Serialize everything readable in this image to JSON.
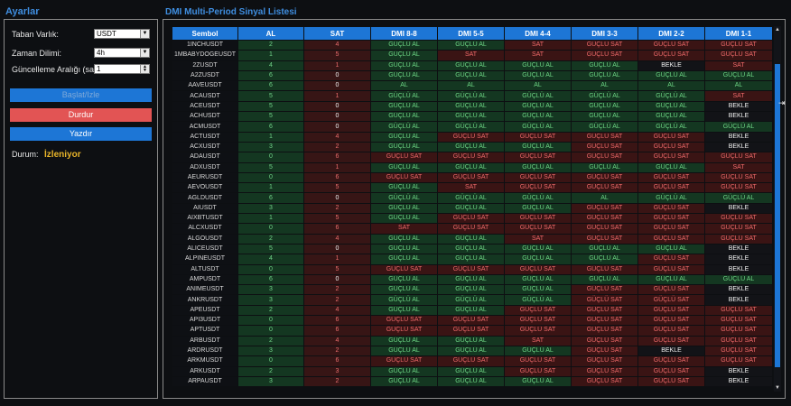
{
  "settings": {
    "title": "Ayarlar",
    "base_asset_label": "Taban Varlık:",
    "base_asset_value": "USDT",
    "timeframe_label": "Zaman Dilimi:",
    "timeframe_value": "4h",
    "interval_label": "Güncelleme Aralığı (saat):",
    "interval_value": "1",
    "start_button": "Başlat/Izle",
    "stop_button": "Durdur",
    "print_button": "Yazdır",
    "status_label": "Durum:",
    "status_value": "İzleniyor"
  },
  "signal_list": {
    "title": "DMI Multi-Period Sinyal Listesi",
    "columns": [
      "Sembol",
      "AL",
      "SAT",
      "DMI 8-8",
      "DMI 5-5",
      "DMI 4-4",
      "DMI 3-3",
      "DMI 2-2",
      "DMI 1-1"
    ],
    "rows": [
      [
        "1INCHUSDT",
        "2",
        "4",
        "GÜÇLÜ AL",
        "GÜÇLÜ AL",
        "SAT",
        "GÜÇLÜ SAT",
        "GÜÇLÜ SAT",
        "GÜÇLÜ SAT"
      ],
      [
        "1MBABYDOGEUSDT",
        "1",
        "5",
        "GÜÇLÜ AL",
        "SAT",
        "SAT",
        "GÜÇLÜ SAT",
        "GÜÇLÜ SAT",
        "GÜÇLÜ SAT"
      ],
      [
        "2ZUSDT",
        "4",
        "1",
        "GÜÇLÜ AL",
        "GÜÇLÜ AL",
        "GÜÇLÜ AL",
        "GÜÇLÜ AL",
        "BEKLE",
        "SAT"
      ],
      [
        "A2ZUSDT",
        "6",
        "0",
        "GÜÇLÜ AL",
        "GÜÇLÜ AL",
        "GÜÇLÜ AL",
        "GÜÇLÜ AL",
        "GÜÇLÜ AL",
        "GÜÇLÜ AL"
      ],
      [
        "AAVEUSDT",
        "6",
        "0",
        "AL",
        "AL",
        "AL",
        "AL",
        "AL",
        "AL"
      ],
      [
        "ACAUSDT",
        "5",
        "1",
        "GÜÇLÜ AL",
        "GÜÇLÜ AL",
        "GÜÇLÜ AL",
        "GÜÇLÜ AL",
        "GÜÇLÜ AL",
        "SAT"
      ],
      [
        "ACEUSDT",
        "5",
        "0",
        "GÜÇLÜ AL",
        "GÜÇLÜ AL",
        "GÜÇLÜ AL",
        "GÜÇLÜ AL",
        "GÜÇLÜ AL",
        "BEKLE"
      ],
      [
        "ACHUSDT",
        "5",
        "0",
        "GÜÇLÜ AL",
        "GÜÇLÜ AL",
        "GÜÇLÜ AL",
        "GÜÇLÜ AL",
        "GÜÇLÜ AL",
        "BEKLE"
      ],
      [
        "ACMUSDT",
        "6",
        "0",
        "GÜÇLÜ AL",
        "GÜÇLÜ AL",
        "GÜÇLÜ AL",
        "GÜÇLÜ AL",
        "GÜÇLÜ AL",
        "GÜÇLÜ AL"
      ],
      [
        "ACTUSDT",
        "1",
        "4",
        "GÜÇLÜ AL",
        "GÜÇLÜ SAT",
        "GÜÇLÜ SAT",
        "GÜÇLÜ SAT",
        "GÜÇLÜ SAT",
        "BEKLE"
      ],
      [
        "ACXUSDT",
        "3",
        "2",
        "GÜÇLÜ AL",
        "GÜÇLÜ AL",
        "GÜÇLÜ AL",
        "GÜÇLÜ SAT",
        "GÜÇLÜ SAT",
        "BEKLE"
      ],
      [
        "ADAUSDT",
        "0",
        "6",
        "GÜÇLÜ SAT",
        "GÜÇLÜ SAT",
        "GÜÇLÜ SAT",
        "GÜÇLÜ SAT",
        "GÜÇLÜ SAT",
        "GÜÇLÜ SAT"
      ],
      [
        "ADXUSDT",
        "5",
        "1",
        "GÜÇLÜ AL",
        "GÜÇLÜ AL",
        "GÜÇLÜ AL",
        "GÜÇLÜ AL",
        "GÜÇLÜ AL",
        "SAT"
      ],
      [
        "AEURUSDT",
        "0",
        "6",
        "GÜÇLÜ SAT",
        "GÜÇLÜ SAT",
        "GÜÇLÜ SAT",
        "GÜÇLÜ SAT",
        "GÜÇLÜ SAT",
        "GÜÇLÜ SAT"
      ],
      [
        "AEVOUSDT",
        "1",
        "5",
        "GÜÇLÜ AL",
        "SAT",
        "GÜÇLÜ SAT",
        "GÜÇLÜ SAT",
        "GÜÇLÜ SAT",
        "GÜÇLÜ SAT"
      ],
      [
        "AGLDUSDT",
        "6",
        "0",
        "GÜÇLÜ AL",
        "GÜÇLÜ AL",
        "GÜÇLÜ AL",
        "AL",
        "GÜÇLÜ AL",
        "GÜÇLÜ AL"
      ],
      [
        "AIUSDT",
        "3",
        "2",
        "GÜÇLÜ AL",
        "GÜÇLÜ AL",
        "GÜÇLÜ AL",
        "GÜÇLÜ SAT",
        "GÜÇLÜ SAT",
        "BEKLE"
      ],
      [
        "AIXBTUSDT",
        "1",
        "5",
        "GÜÇLÜ AL",
        "GÜÇLÜ SAT",
        "GÜÇLÜ SAT",
        "GÜÇLÜ SAT",
        "GÜÇLÜ SAT",
        "GÜÇLÜ SAT"
      ],
      [
        "ALCXUSDT",
        "0",
        "6",
        "SAT",
        "GÜÇLÜ SAT",
        "GÜÇLÜ SAT",
        "GÜÇLÜ SAT",
        "GÜÇLÜ SAT",
        "GÜÇLÜ SAT"
      ],
      [
        "ALGOUSDT",
        "2",
        "4",
        "GÜÇLÜ AL",
        "GÜÇLÜ AL",
        "SAT",
        "GÜÇLÜ SAT",
        "GÜÇLÜ SAT",
        "GÜÇLÜ SAT"
      ],
      [
        "ALICEUSDT",
        "5",
        "0",
        "GÜÇLÜ AL",
        "GÜÇLÜ AL",
        "GÜÇLÜ AL",
        "GÜÇLÜ AL",
        "GÜÇLÜ AL",
        "BEKLE"
      ],
      [
        "ALPINEUSDT",
        "4",
        "1",
        "GÜÇLÜ AL",
        "GÜÇLÜ AL",
        "GÜÇLÜ AL",
        "GÜÇLÜ AL",
        "GÜÇLÜ SAT",
        "BEKLE"
      ],
      [
        "ALTUSDT",
        "0",
        "5",
        "GÜÇLÜ SAT",
        "GÜÇLÜ SAT",
        "GÜÇLÜ SAT",
        "GÜÇLÜ SAT",
        "GÜÇLÜ SAT",
        "BEKLE"
      ],
      [
        "AMPUSDT",
        "6",
        "0",
        "GÜÇLÜ AL",
        "GÜÇLÜ AL",
        "GÜÇLÜ AL",
        "GÜÇLÜ AL",
        "GÜÇLÜ AL",
        "GÜÇLÜ AL"
      ],
      [
        "ANIMEUSDT",
        "3",
        "2",
        "GÜÇLÜ AL",
        "GÜÇLÜ AL",
        "GÜÇLÜ AL",
        "GÜÇLÜ SAT",
        "GÜÇLÜ SAT",
        "BEKLE"
      ],
      [
        "ANKRUSDT",
        "3",
        "2",
        "GÜÇLÜ AL",
        "GÜÇLÜ AL",
        "GÜÇLÜ AL",
        "GÜÇLÜ SAT",
        "GÜÇLÜ SAT",
        "BEKLE"
      ],
      [
        "APEUSDT",
        "2",
        "4",
        "GÜÇLÜ AL",
        "GÜÇLÜ AL",
        "GÜÇLÜ SAT",
        "GÜÇLÜ SAT",
        "GÜÇLÜ SAT",
        "GÜÇLÜ SAT"
      ],
      [
        "API3USDT",
        "0",
        "6",
        "GÜÇLÜ SAT",
        "GÜÇLÜ SAT",
        "GÜÇLÜ SAT",
        "GÜÇLÜ SAT",
        "GÜÇLÜ SAT",
        "GÜÇLÜ SAT"
      ],
      [
        "APTUSDT",
        "0",
        "6",
        "GÜÇLÜ SAT",
        "GÜÇLÜ SAT",
        "GÜÇLÜ SAT",
        "GÜÇLÜ SAT",
        "GÜÇLÜ SAT",
        "GÜÇLÜ SAT"
      ],
      [
        "ARBUSDT",
        "2",
        "4",
        "GÜÇLÜ AL",
        "GÜÇLÜ AL",
        "SAT",
        "GÜÇLÜ SAT",
        "GÜÇLÜ SAT",
        "GÜÇLÜ SAT"
      ],
      [
        "ARDRUSDT",
        "3",
        "2",
        "GÜÇLÜ AL",
        "GÜÇLÜ AL",
        "GÜÇLÜ AL",
        "GÜÇLÜ SAT",
        "BEKLE",
        "GÜÇLÜ SAT"
      ],
      [
        "ARKMUSDT",
        "0",
        "6",
        "GÜÇLÜ SAT",
        "GÜÇLÜ SAT",
        "GÜÇLÜ SAT",
        "GÜÇLÜ SAT",
        "GÜÇLÜ SAT",
        "GÜÇLÜ SAT"
      ],
      [
        "ARKUSDT",
        "2",
        "3",
        "GÜÇLÜ AL",
        "GÜÇLÜ AL",
        "GÜÇLÜ SAT",
        "GÜÇLÜ SAT",
        "GÜÇLÜ SAT",
        "BEKLE"
      ],
      [
        "ARPAUSDT",
        "3",
        "2",
        "GÜÇLÜ AL",
        "GÜÇLÜ AL",
        "GÜÇLÜ AL",
        "GÜÇLÜ SAT",
        "GÜÇLÜ SAT",
        "BEKLE"
      ]
    ]
  },
  "icons": {
    "select_arrow": "chevron-down-icon",
    "scroll_up": "triangle-up-icon",
    "scroll_down": "triangle-down-icon",
    "cursor": "resize-cursor-icon"
  },
  "colors": {
    "accent": "#1d76d6",
    "stop": "#e25454",
    "status": "#e8b429",
    "buy_text": "#6ed685",
    "sell_text": "#ee6a6a"
  }
}
